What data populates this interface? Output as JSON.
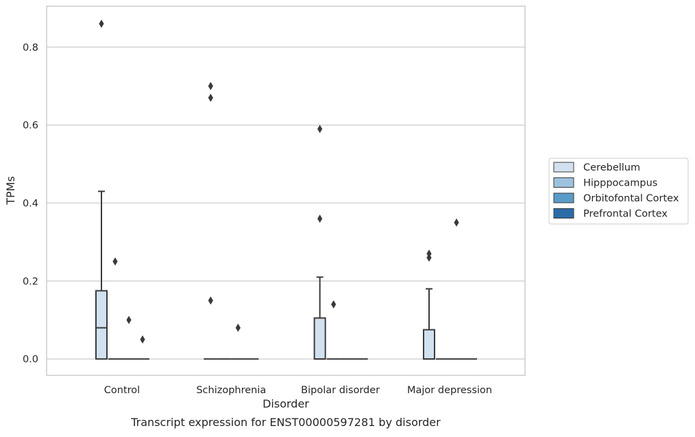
{
  "chart_data": {
    "type": "box",
    "caption": "Transcript expression for ENST00000597281 by disorder",
    "xlabel": "Disorder",
    "ylabel": "TPMs",
    "ylim": [
      -0.042,
      0.905
    ],
    "yticks": [
      0.0,
      0.2,
      0.4,
      0.6,
      0.8
    ],
    "ytick_labels": [
      "0.0",
      "0.2",
      "0.4",
      "0.6",
      "0.8"
    ],
    "grid": "horizontal",
    "legend_position": "right",
    "categories": [
      "Control",
      "Schizophrenia",
      "Bipolar disorder",
      "Major depression"
    ],
    "series": [
      {
        "name": "Cerebellum",
        "color": "#d1e1f0",
        "boxes": [
          {
            "q1": 0.0,
            "median": 0.08,
            "q3": 0.175,
            "whisker_low": 0.0,
            "whisker_high": 0.43,
            "outliers": [
              0.86
            ]
          },
          {
            "q1": 0.0,
            "median": 0.0,
            "q3": 0.0,
            "whisker_low": 0.0,
            "whisker_high": 0.0,
            "outliers": [
              0.7,
              0.67,
              0.15
            ]
          },
          {
            "q1": 0.0,
            "median": 0.0,
            "q3": 0.105,
            "whisker_low": 0.0,
            "whisker_high": 0.21,
            "outliers": [
              0.59,
              0.36
            ]
          },
          {
            "q1": 0.0,
            "median": 0.0,
            "q3": 0.075,
            "whisker_low": 0.0,
            "whisker_high": 0.18,
            "outliers": [
              0.27,
              0.26
            ]
          }
        ]
      },
      {
        "name": "Hipppocampus",
        "color": "#9dc2dd",
        "boxes": [
          {
            "q1": 0.0,
            "median": 0.0,
            "q3": 0.0,
            "whisker_low": 0.0,
            "whisker_high": 0.0,
            "outliers": [
              0.25
            ]
          },
          {
            "q1": 0.0,
            "median": 0.0,
            "q3": 0.0,
            "whisker_low": 0.0,
            "whisker_high": 0.0,
            "outliers": []
          },
          {
            "q1": 0.0,
            "median": 0.0,
            "q3": 0.0,
            "whisker_low": 0.0,
            "whisker_high": 0.0,
            "outliers": [
              0.14
            ]
          },
          {
            "q1": 0.0,
            "median": 0.0,
            "q3": 0.0,
            "whisker_low": 0.0,
            "whisker_high": 0.0,
            "outliers": []
          }
        ]
      },
      {
        "name": "Orbitofontal Cortex",
        "color": "#5b9bc9",
        "boxes": [
          {
            "q1": 0.0,
            "median": 0.0,
            "q3": 0.0,
            "whisker_low": 0.0,
            "whisker_high": 0.0,
            "outliers": [
              0.1
            ]
          },
          {
            "q1": 0.0,
            "median": 0.0,
            "q3": 0.0,
            "whisker_low": 0.0,
            "whisker_high": 0.0,
            "outliers": [
              0.08
            ]
          },
          {
            "q1": 0.0,
            "median": 0.0,
            "q3": 0.0,
            "whisker_low": 0.0,
            "whisker_high": 0.0,
            "outliers": []
          },
          {
            "q1": 0.0,
            "median": 0.0,
            "q3": 0.0,
            "whisker_low": 0.0,
            "whisker_high": 0.0,
            "outliers": [
              0.35
            ]
          }
        ]
      },
      {
        "name": "Prefrontal Cortex",
        "color": "#2b6ca8",
        "boxes": [
          {
            "q1": 0.0,
            "median": 0.0,
            "q3": 0.0,
            "whisker_low": 0.0,
            "whisker_high": 0.0,
            "outliers": [
              0.05
            ]
          },
          {
            "q1": 0.0,
            "median": 0.0,
            "q3": 0.0,
            "whisker_low": 0.0,
            "whisker_high": 0.0,
            "outliers": []
          },
          {
            "q1": 0.0,
            "median": 0.0,
            "q3": 0.0,
            "whisker_low": 0.0,
            "whisker_high": 0.0,
            "outliers": []
          },
          {
            "q1": 0.0,
            "median": 0.0,
            "q3": 0.0,
            "whisker_low": 0.0,
            "whisker_high": 0.0,
            "outliers": []
          }
        ]
      }
    ]
  }
}
